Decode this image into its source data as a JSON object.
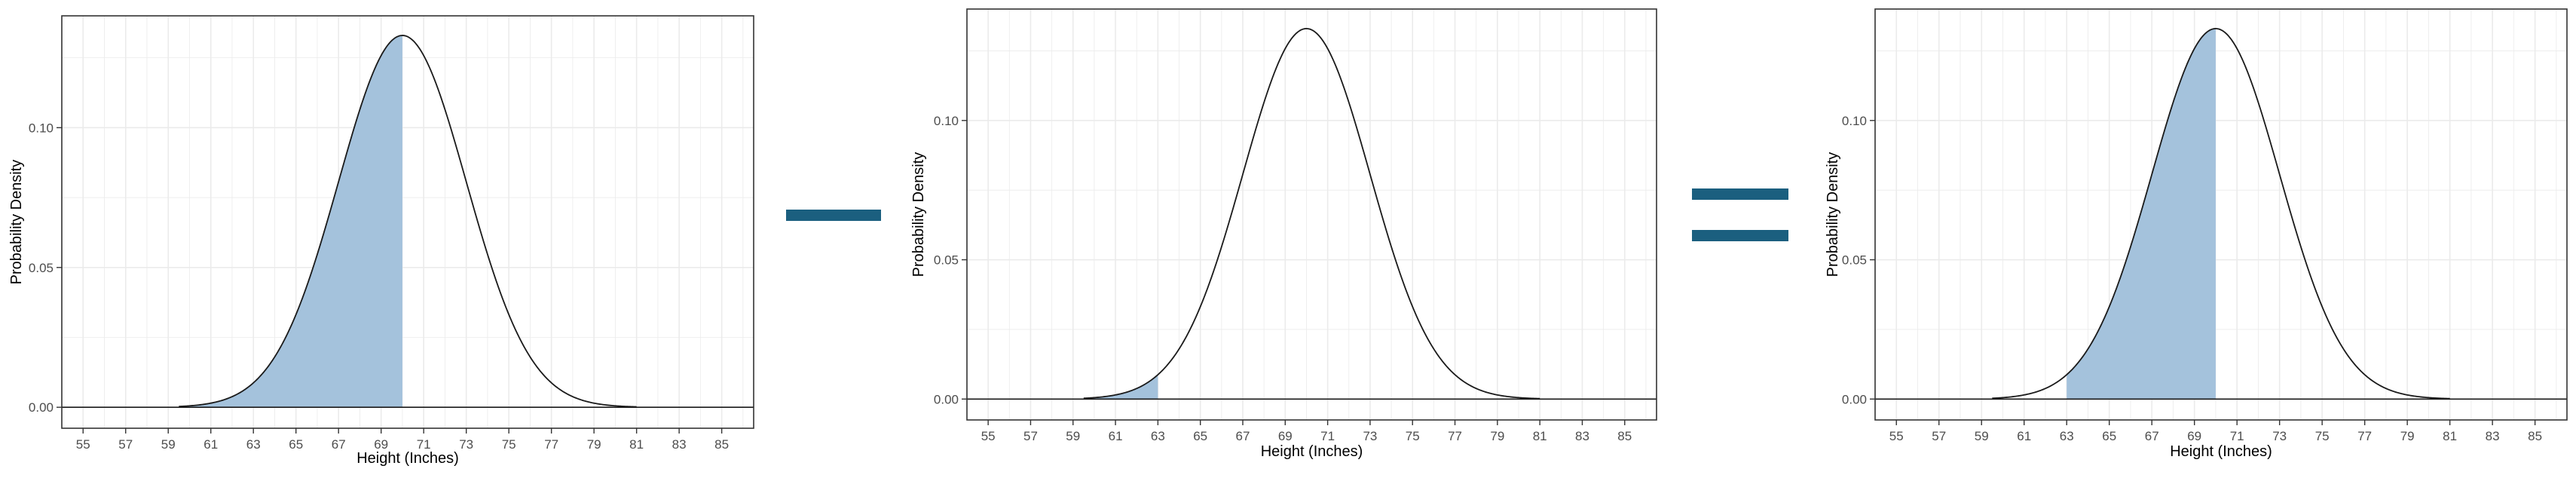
{
  "operators": {
    "minus_color": "#1b5f7f",
    "equals_color": "#1b5f7f"
  },
  "style": {
    "fill_color": "#a4c2dc",
    "curve_color": "#1a1a1a",
    "grid_color": "#ebebeb",
    "axis_text_color": "#4d4d4d"
  },
  "chart_data": [
    {
      "type": "area",
      "description_shape": "normal density curve with shaded region",
      "distribution": {
        "mean": 70,
        "sd": 3
      },
      "curve_x_range": [
        59.5,
        81
      ],
      "shaded_range": [
        59.5,
        70
      ],
      "xlabel": "Height (Inches)",
      "ylabel": "Probability Density",
      "x_ticks": [
        "55",
        "57",
        "59",
        "61",
        "63",
        "65",
        "67",
        "69",
        "71",
        "73",
        "75",
        "77",
        "79",
        "81",
        "83",
        "85"
      ],
      "y_ticks": [
        "0.00",
        "0.05",
        "0.10"
      ],
      "xlim": [
        54,
        86.5
      ],
      "ylim": [
        -0.0075,
        0.14
      ],
      "grid": true
    },
    {
      "type": "area",
      "distribution": {
        "mean": 70,
        "sd": 3
      },
      "curve_x_range": [
        59.5,
        81
      ],
      "shaded_range": [
        59.5,
        63
      ],
      "xlabel": "Height (Inches)",
      "ylabel": "Probability Density",
      "x_ticks": [
        "55",
        "57",
        "59",
        "61",
        "63",
        "65",
        "67",
        "69",
        "71",
        "73",
        "75",
        "77",
        "79",
        "81",
        "83",
        "85"
      ],
      "y_ticks": [
        "0.00",
        "0.05",
        "0.10"
      ],
      "xlim": [
        54,
        86.5
      ],
      "ylim": [
        -0.0075,
        0.14
      ],
      "grid": true
    },
    {
      "type": "area",
      "distribution": {
        "mean": 70,
        "sd": 3
      },
      "curve_x_range": [
        59.5,
        81
      ],
      "shaded_range": [
        63,
        70
      ],
      "xlabel": "Height (Inches)",
      "ylabel": "Probability Density",
      "x_ticks": [
        "55",
        "57",
        "59",
        "61",
        "63",
        "65",
        "67",
        "69",
        "71",
        "73",
        "75",
        "77",
        "79",
        "81",
        "83",
        "85"
      ],
      "y_ticks": [
        "0.00",
        "0.05",
        "0.10"
      ],
      "xlim": [
        54,
        86.5
      ],
      "ylim": [
        -0.0075,
        0.14
      ],
      "grid": true
    }
  ]
}
